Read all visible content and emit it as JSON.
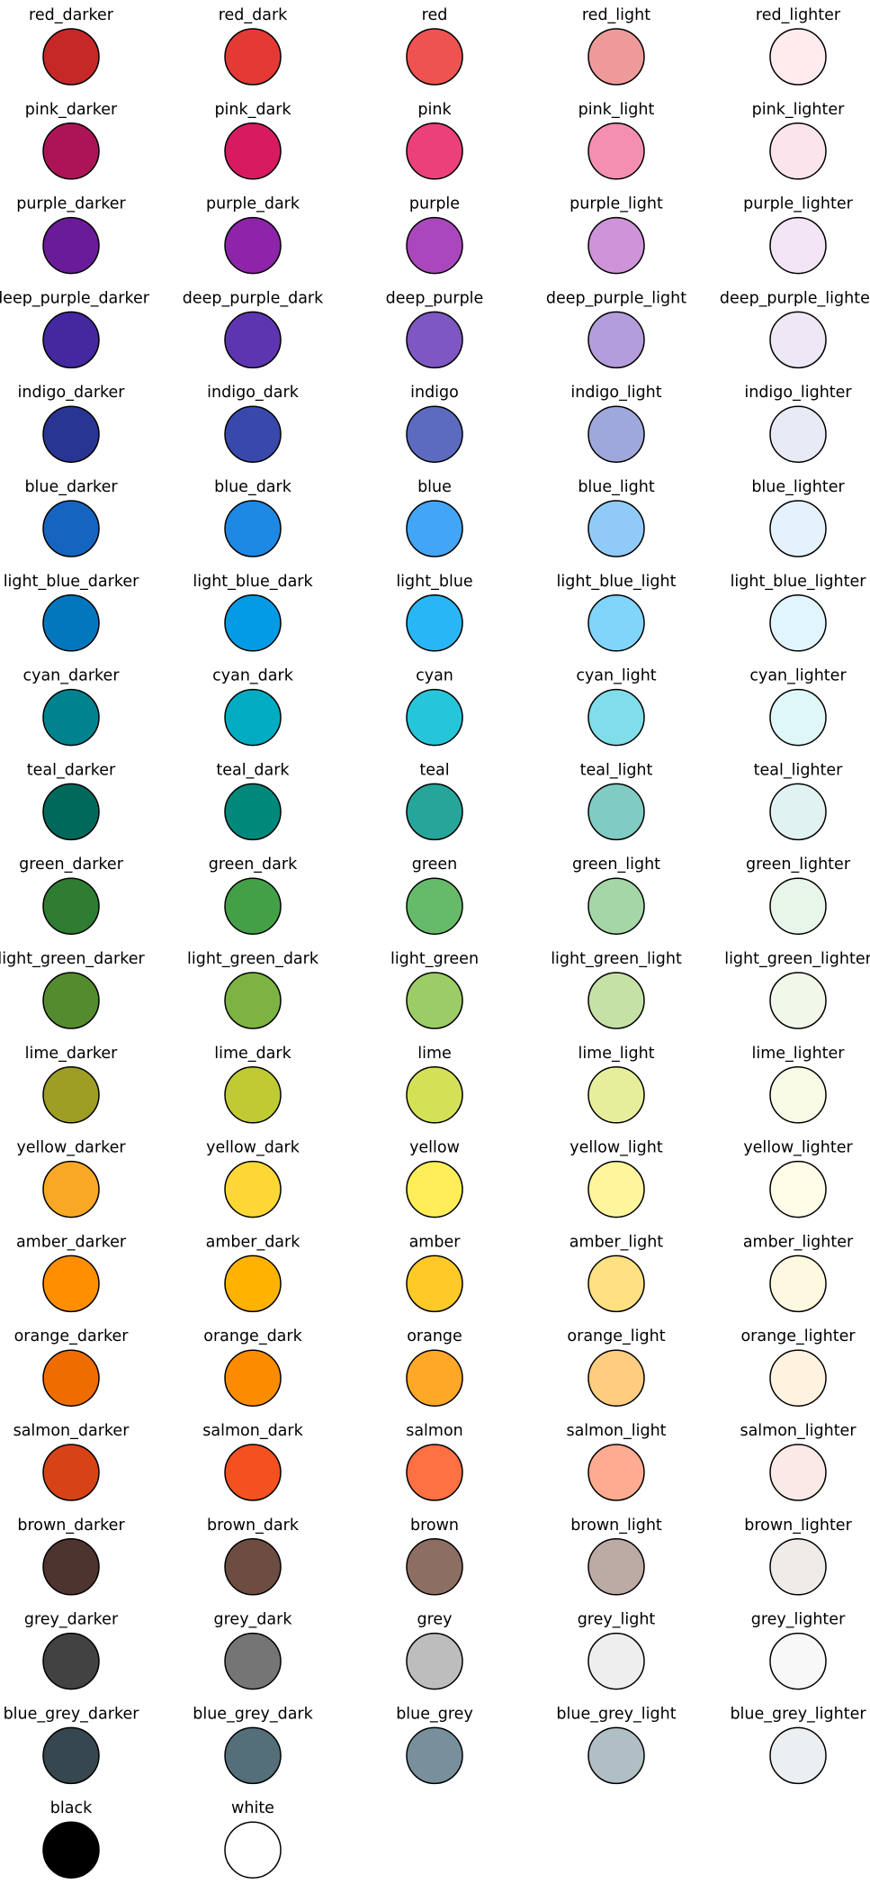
{
  "chart_data": {
    "type": "table",
    "title": "",
    "columns": 5,
    "swatches": [
      {
        "name": "red_darker",
        "color": "#c62828"
      },
      {
        "name": "red_dark",
        "color": "#e53935"
      },
      {
        "name": "red",
        "color": "#ef5350"
      },
      {
        "name": "red_light",
        "color": "#ef9a9a"
      },
      {
        "name": "red_lighter",
        "color": "#ffebee"
      },
      {
        "name": "pink_darker",
        "color": "#ad1457"
      },
      {
        "name": "pink_dark",
        "color": "#d81b60"
      },
      {
        "name": "pink",
        "color": "#ec407a"
      },
      {
        "name": "pink_light",
        "color": "#f48fb1"
      },
      {
        "name": "pink_lighter",
        "color": "#fce4ec"
      },
      {
        "name": "purple_darker",
        "color": "#6a1b9a"
      },
      {
        "name": "purple_dark",
        "color": "#8e24aa"
      },
      {
        "name": "purple",
        "color": "#ab47bc"
      },
      {
        "name": "purple_light",
        "color": "#ce93d8"
      },
      {
        "name": "purple_lighter",
        "color": "#f3e5f5"
      },
      {
        "name": "deep_purple_darker",
        "color": "#4527a0"
      },
      {
        "name": "deep_purple_dark",
        "color": "#5e35b1"
      },
      {
        "name": "deep_purple",
        "color": "#7e57c2"
      },
      {
        "name": "deep_purple_light",
        "color": "#b39ddb"
      },
      {
        "name": "deep_purple_lighter",
        "color": "#ede7f6"
      },
      {
        "name": "indigo_darker",
        "color": "#283593"
      },
      {
        "name": "indigo_dark",
        "color": "#3949ab"
      },
      {
        "name": "indigo",
        "color": "#5c6bc0"
      },
      {
        "name": "indigo_light",
        "color": "#9fa8da"
      },
      {
        "name": "indigo_lighter",
        "color": "#e8eaf6"
      },
      {
        "name": "blue_darker",
        "color": "#1565c0"
      },
      {
        "name": "blue_dark",
        "color": "#1e88e5"
      },
      {
        "name": "blue",
        "color": "#42a5f5"
      },
      {
        "name": "blue_light",
        "color": "#90caf9"
      },
      {
        "name": "blue_lighter",
        "color": "#e3f2fd"
      },
      {
        "name": "light_blue_darker",
        "color": "#0277bd"
      },
      {
        "name": "light_blue_dark",
        "color": "#039be5"
      },
      {
        "name": "light_blue",
        "color": "#29b6f6"
      },
      {
        "name": "light_blue_light",
        "color": "#81d4fa"
      },
      {
        "name": "light_blue_lighter",
        "color": "#e1f5fe"
      },
      {
        "name": "cyan_darker",
        "color": "#00838f"
      },
      {
        "name": "cyan_dark",
        "color": "#00acc1"
      },
      {
        "name": "cyan",
        "color": "#26c6da"
      },
      {
        "name": "cyan_light",
        "color": "#80deea"
      },
      {
        "name": "cyan_lighter",
        "color": "#e0f7fa"
      },
      {
        "name": "teal_darker",
        "color": "#00695c"
      },
      {
        "name": "teal_dark",
        "color": "#00897b"
      },
      {
        "name": "teal",
        "color": "#26a69a"
      },
      {
        "name": "teal_light",
        "color": "#80cbc4"
      },
      {
        "name": "teal_lighter",
        "color": "#e0f2f1"
      },
      {
        "name": "green_darker",
        "color": "#2e7d32"
      },
      {
        "name": "green_dark",
        "color": "#43a047"
      },
      {
        "name": "green",
        "color": "#66bb6a"
      },
      {
        "name": "green_light",
        "color": "#a5d6a7"
      },
      {
        "name": "green_lighter",
        "color": "#e8f5e9"
      },
      {
        "name": "light_green_darker",
        "color": "#558b2f"
      },
      {
        "name": "light_green_dark",
        "color": "#7cb342"
      },
      {
        "name": "light_green",
        "color": "#9ccc65"
      },
      {
        "name": "light_green_light",
        "color": "#c5e1a5"
      },
      {
        "name": "light_green_lighter",
        "color": "#f1f8e9"
      },
      {
        "name": "lime_darker",
        "color": "#9e9d24"
      },
      {
        "name": "lime_dark",
        "color": "#c0ca33"
      },
      {
        "name": "lime",
        "color": "#d4e157"
      },
      {
        "name": "lime_light",
        "color": "#e6ee9c"
      },
      {
        "name": "lime_lighter",
        "color": "#f9fbe7"
      },
      {
        "name": "yellow_darker",
        "color": "#f9a825"
      },
      {
        "name": "yellow_dark",
        "color": "#fdd835"
      },
      {
        "name": "yellow",
        "color": "#ffee58"
      },
      {
        "name": "yellow_light",
        "color": "#fff59d"
      },
      {
        "name": "yellow_lighter",
        "color": "#fffde7"
      },
      {
        "name": "amber_darker",
        "color": "#ff8f00"
      },
      {
        "name": "amber_dark",
        "color": "#ffb300"
      },
      {
        "name": "amber",
        "color": "#ffca28"
      },
      {
        "name": "amber_light",
        "color": "#ffe082"
      },
      {
        "name": "amber_lighter",
        "color": "#fff8e1"
      },
      {
        "name": "orange_darker",
        "color": "#ef6c00"
      },
      {
        "name": "orange_dark",
        "color": "#fb8c00"
      },
      {
        "name": "orange",
        "color": "#ffa726"
      },
      {
        "name": "orange_light",
        "color": "#ffcc80"
      },
      {
        "name": "orange_lighter",
        "color": "#fff3e0"
      },
      {
        "name": "salmon_darker",
        "color": "#d84315"
      },
      {
        "name": "salmon_dark",
        "color": "#f4511e"
      },
      {
        "name": "salmon",
        "color": "#ff7043"
      },
      {
        "name": "salmon_light",
        "color": "#ffab91"
      },
      {
        "name": "salmon_lighter",
        "color": "#fbe9e7"
      },
      {
        "name": "brown_darker",
        "color": "#4e342e"
      },
      {
        "name": "brown_dark",
        "color": "#6d4c41"
      },
      {
        "name": "brown",
        "color": "#8d6e63"
      },
      {
        "name": "brown_light",
        "color": "#bcaaa4"
      },
      {
        "name": "brown_lighter",
        "color": "#efebe9"
      },
      {
        "name": "grey_darker",
        "color": "#424242"
      },
      {
        "name": "grey_dark",
        "color": "#757575"
      },
      {
        "name": "grey",
        "color": "#bdbdbd"
      },
      {
        "name": "grey_light",
        "color": "#eeeeee"
      },
      {
        "name": "grey_lighter",
        "color": "#f8f8f8"
      },
      {
        "name": "blue_grey_darker",
        "color": "#37474f"
      },
      {
        "name": "blue_grey_dark",
        "color": "#546e7a"
      },
      {
        "name": "blue_grey",
        "color": "#78909c"
      },
      {
        "name": "blue_grey_light",
        "color": "#b0bec5"
      },
      {
        "name": "blue_grey_lighter",
        "color": "#eceff1"
      },
      {
        "name": "black",
        "color": "#000000"
      },
      {
        "name": "white",
        "color": "#ffffff"
      }
    ]
  }
}
